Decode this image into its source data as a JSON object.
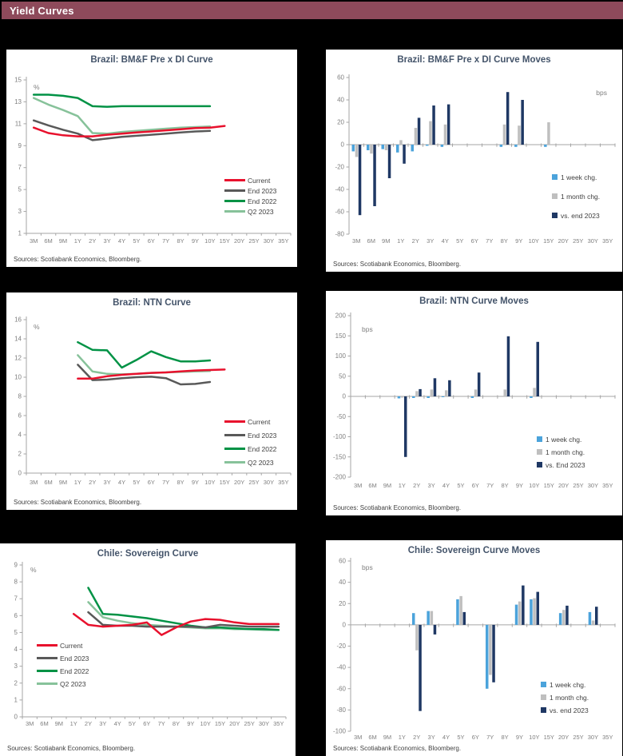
{
  "header": {
    "title": "Yield Curves",
    "bg_color": "#8E4A5B"
  },
  "sources_label": "Sources: Scotiabank Economics, Bloomberg.",
  "style": {
    "axis_color": "#A6A6A6",
    "tick_label_color": "#7F7F7F",
    "title_color": "#44546A",
    "current_red": "#E8112D",
    "end2023_gray": "#595959",
    "end2022_green": "#009245",
    "q2_2023_lightgreen": "#87C29A",
    "week_blue": "#4BA3DB",
    "month_gray": "#BFBFBF",
    "vsend_navy": "#1F3864"
  },
  "chart_data": [
    {
      "type": "line",
      "title": "Brazil: BM&F Pre x DI Curve",
      "unit": "%",
      "ylim": [
        1,
        15
      ],
      "ystep": 2,
      "categories": [
        "3M",
        "6M",
        "9M",
        "1Y",
        "2Y",
        "3Y",
        "4Y",
        "5Y",
        "6Y",
        "7Y",
        "8Y",
        "9Y",
        "10Y",
        "15Y",
        "20Y",
        "25Y",
        "30Y",
        "35Y"
      ],
      "series": [
        {
          "name": "Current",
          "color": "#E8112D",
          "values": [
            10.65,
            10.15,
            9.95,
            9.85,
            9.85,
            10.0,
            10.1,
            10.2,
            10.3,
            10.4,
            10.5,
            10.6,
            10.65,
            10.8,
            null,
            null,
            null,
            null
          ]
        },
        {
          "name": "End 2023",
          "color": "#595959",
          "values": [
            11.3,
            10.85,
            10.45,
            10.1,
            9.5,
            9.65,
            9.8,
            9.9,
            10.0,
            10.1,
            10.2,
            10.3,
            10.35,
            null,
            null,
            null,
            null,
            null
          ]
        },
        {
          "name": "End 2022",
          "color": "#009245",
          "values": [
            13.65,
            13.65,
            13.55,
            13.35,
            12.6,
            12.55,
            12.6,
            12.6,
            12.6,
            12.6,
            12.6,
            12.6,
            12.6,
            null,
            null,
            null,
            null,
            null
          ]
        },
        {
          "name": "Q2 2023",
          "color": "#87C29A",
          "values": [
            13.35,
            12.75,
            12.25,
            11.7,
            10.15,
            10.1,
            10.25,
            10.35,
            10.45,
            10.55,
            10.65,
            10.7,
            10.75,
            null,
            null,
            null,
            null,
            null
          ]
        }
      ]
    },
    {
      "type": "bar",
      "title": "Brazil: BM&F Pre x DI Curve Moves",
      "unit": "bps",
      "ylim": [
        -80,
        60
      ],
      "ystep": 20,
      "categories": [
        "3M",
        "6M",
        "9M",
        "1Y",
        "2Y",
        "3Y",
        "4Y",
        "5Y",
        "6Y",
        "7Y",
        "8Y",
        "9Y",
        "10Y",
        "15Y",
        "20Y",
        "25Y",
        "30Y",
        "35Y"
      ],
      "series": [
        {
          "name": "1 week chg.",
          "color": "#4BA3DB",
          "values": [
            -6,
            -5,
            -4,
            -7,
            -6,
            -1,
            -2,
            0,
            0,
            0,
            -2,
            -2,
            0,
            -2,
            0,
            0,
            0,
            0
          ]
        },
        {
          "name": "1 month chg.",
          "color": "#BFBFBF",
          "values": [
            -11,
            -8,
            -5,
            4,
            15,
            21,
            18,
            0,
            0,
            0,
            18,
            17,
            0,
            20,
            0,
            0,
            0,
            0
          ]
        },
        {
          "name": "vs. end 2023",
          "color": "#1F3864",
          "values": [
            -63,
            -55,
            -30,
            -17,
            24,
            35,
            36,
            0,
            0,
            0,
            47,
            40,
            0,
            0,
            0,
            0,
            0,
            0
          ]
        }
      ]
    },
    {
      "type": "line",
      "title": "Brazil: NTN Curve",
      "unit": "%",
      "ylim": [
        0,
        16
      ],
      "ystep": 2,
      "categories": [
        "3M",
        "6M",
        "9M",
        "1Y",
        "2Y",
        "3Y",
        "4Y",
        "5Y",
        "6Y",
        "7Y",
        "8Y",
        "9Y",
        "10Y",
        "15Y",
        "20Y",
        "25Y",
        "30Y",
        "35Y"
      ],
      "series": [
        {
          "name": "Current",
          "color": "#E8112D",
          "values": [
            null,
            null,
            null,
            9.85,
            9.85,
            10.1,
            10.25,
            10.35,
            10.45,
            10.5,
            10.6,
            10.7,
            10.75,
            10.8,
            null,
            null,
            null,
            null
          ]
        },
        {
          "name": "End 2023",
          "color": "#595959",
          "values": [
            null,
            null,
            null,
            11.3,
            9.7,
            9.75,
            9.9,
            10.0,
            10.05,
            9.9,
            9.25,
            9.3,
            9.5,
            null,
            null,
            null,
            null,
            null
          ]
        },
        {
          "name": "End 2022",
          "color": "#009245",
          "values": [
            null,
            null,
            null,
            13.65,
            12.85,
            12.8,
            11.0,
            11.8,
            12.7,
            12.1,
            11.65,
            11.65,
            11.75,
            null,
            null,
            null,
            null,
            null
          ]
        },
        {
          "name": "Q2 2023",
          "color": "#87C29A",
          "values": [
            null,
            null,
            null,
            12.3,
            10.6,
            10.35,
            10.3,
            10.35,
            10.45,
            10.5,
            10.55,
            10.6,
            10.65,
            null,
            null,
            null,
            null,
            null
          ]
        }
      ]
    },
    {
      "type": "bar",
      "title": "Brazil: NTN Curve Moves",
      "unit": "bps",
      "ylim": [
        -200,
        200
      ],
      "ystep": 50,
      "categories": [
        "3M",
        "6M",
        "9M",
        "1Y",
        "2Y",
        "3Y",
        "4Y",
        "5Y",
        "6Y",
        "7Y",
        "8Y",
        "9Y",
        "10Y",
        "15Y",
        "20Y",
        "25Y",
        "30Y",
        "35Y"
      ],
      "series": [
        {
          "name": "1 week chg.",
          "color": "#4BA3DB",
          "values": [
            0,
            0,
            0,
            -5,
            -4,
            -4,
            -2,
            0,
            -4,
            0,
            0,
            0,
            -4,
            0,
            0,
            0,
            0,
            0
          ]
        },
        {
          "name": "1 month chg.",
          "color": "#BFBFBF",
          "values": [
            0,
            0,
            0,
            -3,
            13,
            17,
            15,
            0,
            17,
            0,
            17,
            0,
            21,
            0,
            0,
            0,
            0,
            0
          ]
        },
        {
          "name": "vs. End 2023",
          "color": "#1F3864",
          "values": [
            0,
            0,
            0,
            -150,
            18,
            45,
            40,
            0,
            59,
            0,
            149,
            0,
            135,
            0,
            0,
            0,
            0,
            0
          ]
        }
      ]
    },
    {
      "type": "line",
      "title": "Chile: Sovereign Curve",
      "unit": "%",
      "ylim": [
        0,
        9
      ],
      "ystep": 1,
      "categories": [
        "3M",
        "6M",
        "9M",
        "1Y",
        "2Y",
        "3Y",
        "4Y",
        "5Y",
        "6Y",
        "7Y",
        "8Y",
        "9Y",
        "10Y",
        "15Y",
        "20Y",
        "25Y",
        "30Y",
        "35Y"
      ],
      "series": [
        {
          "name": "Current",
          "color": "#E8112D",
          "values": [
            null,
            null,
            null,
            6.1,
            5.45,
            5.35,
            5.4,
            5.45,
            5.6,
            4.85,
            5.3,
            5.65,
            5.8,
            5.75,
            5.6,
            5.5,
            5.5,
            5.5
          ]
        },
        {
          "name": "End 2023",
          "color": "#595959",
          "values": [
            null,
            null,
            null,
            null,
            6.2,
            5.45,
            5.4,
            5.4,
            5.35,
            5.35,
            5.35,
            5.35,
            5.3,
            5.45,
            5.4,
            5.35,
            5.35,
            5.35
          ]
        },
        {
          "name": "End 2022",
          "color": "#009245",
          "values": [
            null,
            null,
            null,
            null,
            7.65,
            6.1,
            6.05,
            5.95,
            5.85,
            5.7,
            5.55,
            5.4,
            5.3,
            5.3,
            5.25,
            5.2,
            5.2,
            5.15
          ]
        },
        {
          "name": "Q2 2023",
          "color": "#87C29A",
          "values": [
            null,
            null,
            null,
            null,
            6.8,
            5.9,
            5.7,
            5.55,
            5.45,
            5.4,
            5.35,
            5.3,
            5.25,
            5.25,
            5.2,
            5.2,
            5.15,
            5.15
          ]
        }
      ]
    },
    {
      "type": "bar",
      "title": "Chile: Sovereign Curve Moves",
      "unit": "bps",
      "ylim": [
        -100,
        60
      ],
      "ystep": 20,
      "categories": [
        "3M",
        "6M",
        "9M",
        "1Y",
        "2Y",
        "3Y",
        "4Y",
        "5Y",
        "6Y",
        "7Y",
        "8Y",
        "9Y",
        "10Y",
        "15Y",
        "20Y",
        "25Y",
        "30Y",
        "35Y"
      ],
      "series": [
        {
          "name": "1 week chg.",
          "color": "#4BA3DB",
          "values": [
            0,
            0,
            0,
            0,
            11,
            13,
            0,
            24,
            0,
            -60,
            0,
            19,
            24,
            0,
            11,
            0,
            12,
            0
          ]
        },
        {
          "name": "1 month chg.",
          "color": "#BFBFBF",
          "values": [
            0,
            0,
            0,
            0,
            -24,
            13,
            0,
            27,
            0,
            -47,
            0,
            22,
            25,
            0,
            14,
            0,
            4,
            0
          ]
        },
        {
          "name": "vs. end 2023",
          "color": "#1F3864",
          "values": [
            0,
            0,
            0,
            0,
            -81,
            -9,
            0,
            12,
            0,
            -54,
            0,
            37,
            31,
            0,
            18,
            0,
            17,
            0
          ]
        }
      ]
    }
  ]
}
